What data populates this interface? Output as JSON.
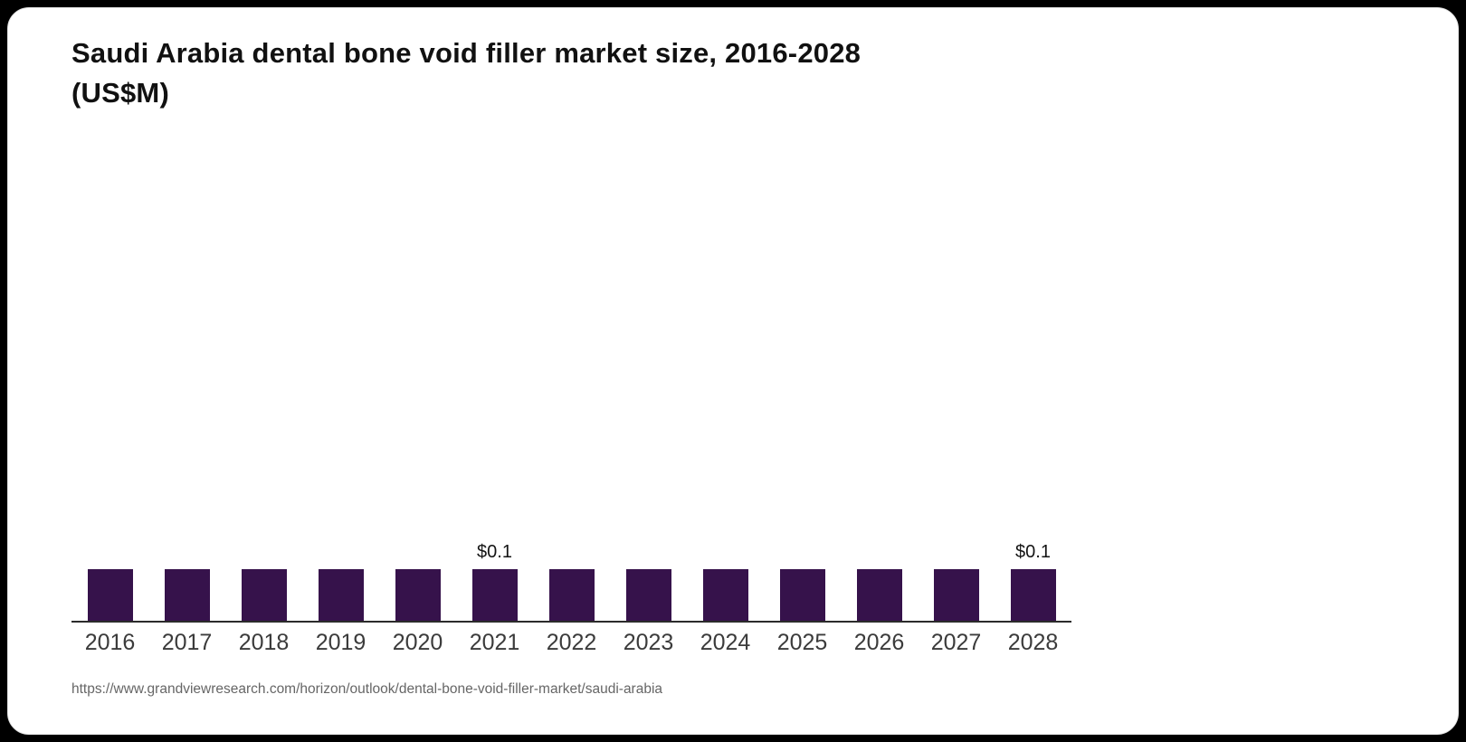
{
  "card": {
    "title_line1": "Saudi Arabia dental bone void filler market size, 2016-2028",
    "title_line2": "(US$M)",
    "source_url": "https://www.grandviewresearch.com/horizon/outlook/dental-bone-void-filler-market/saudi-arabia"
  },
  "colors": {
    "bar": "#36124b",
    "axis": "#2b2b2b",
    "title_text": "#111111",
    "year_label_text": "#3b3b3b",
    "value_label_text": "#141414",
    "source_text": "#666666",
    "card_background": "#ffffff",
    "page_background": "#000000"
  },
  "chart_data": {
    "type": "bar",
    "title": "Saudi Arabia dental bone void filler market size, 2016-2028 (US$M)",
    "categories": [
      "2016",
      "2017",
      "2018",
      "2019",
      "2020",
      "2021",
      "2022",
      "2023",
      "2024",
      "2025",
      "2026",
      "2027",
      "2028"
    ],
    "values": [
      0.1,
      0.1,
      0.1,
      0.1,
      0.1,
      0.1,
      0.1,
      0.1,
      0.1,
      0.1,
      0.1,
      0.1,
      0.1
    ],
    "bar_labels": [
      "",
      "",
      "",
      "",
      "",
      "$0.1",
      "",
      "",
      "",
      "",
      "",
      "",
      "$0.1"
    ],
    "xlabel": "",
    "ylabel": "",
    "grid": false,
    "legend": false,
    "bar_color": "#36124b"
  }
}
